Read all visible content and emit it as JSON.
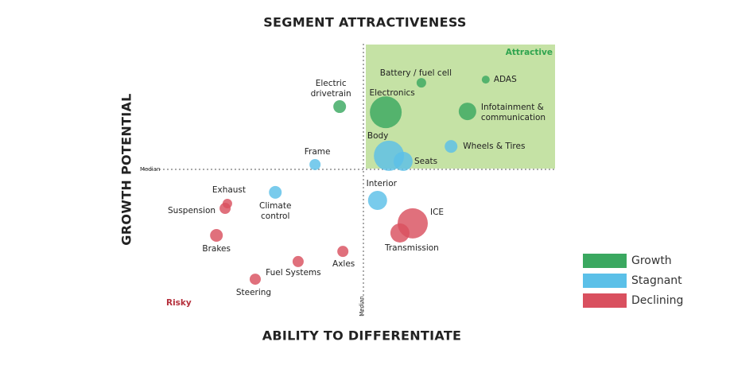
{
  "chart_data": {
    "type": "scatter",
    "title": "SEGMENT ATTRACTIVENESS",
    "x_label": "ABILITY TO DIFFERENTIATE",
    "y_label": "GROWTH POTENTIAL",
    "xlim": [
      0,
      100
    ],
    "ylim": [
      0,
      100
    ],
    "median": {
      "x": 50,
      "y": 50,
      "label": "Median"
    },
    "annotations": [
      {
        "text": "Attractive",
        "color": "#2fa44f"
      },
      {
        "text": "Risky",
        "color": "#b5303c"
      }
    ],
    "series": [
      {
        "name": "Growth",
        "color": "#3aa860",
        "x": [
          44.8,
          62.7,
          76.8,
          54.9,
          72.8
        ],
        "y": [
          73.5,
          82.4,
          83.6,
          71.4,
          71.7
        ],
        "size": [
          8,
          6,
          5,
          20,
          11
        ],
        "labels": [
          [
            "Electric",
            "drivetrain"
          ],
          [
            "Battery / fuel cell"
          ],
          [
            "ADAS"
          ],
          [
            "Electronics"
          ],
          [
            "Infotainment &",
            "communication"
          ]
        ]
      },
      {
        "name": "Stagnant",
        "color": "#5bc0e8",
        "x": [
          39.4,
          55.6,
          58.7,
          69.2,
          30.7,
          53.1
        ],
        "y": [
          51.8,
          55.1,
          53.0,
          58.6,
          41.4,
          38.4
        ],
        "size": [
          7,
          19,
          12,
          8,
          8,
          12
        ],
        "labels": [
          [
            "Frame"
          ],
          [
            "Body"
          ],
          [
            "Seats"
          ],
          [
            "Wheels & Tires"
          ],
          [
            "Climate",
            "control"
          ],
          [
            "Interior"
          ]
        ]
      },
      {
        "name": "Declining",
        "color": "#d9505f",
        "x": [
          20.2,
          19.7,
          17.8,
          35.7,
          26.3,
          45.5,
          60.8,
          58.0
        ],
        "y": [
          37.2,
          35.4,
          25.3,
          15.5,
          8.9,
          19.3,
          29.8,
          26.2
        ],
        "size": [
          6,
          7,
          8,
          7,
          7,
          7,
          19,
          12
        ],
        "labels": [
          [
            "Exhaust"
          ],
          [
            "Suspension"
          ],
          [
            "Brakes"
          ],
          [
            "Fuel Systems"
          ],
          [
            "Steering"
          ],
          [
            "Axles"
          ],
          [
            "ICE"
          ],
          [
            "Transmission"
          ]
        ]
      }
    ]
  }
}
